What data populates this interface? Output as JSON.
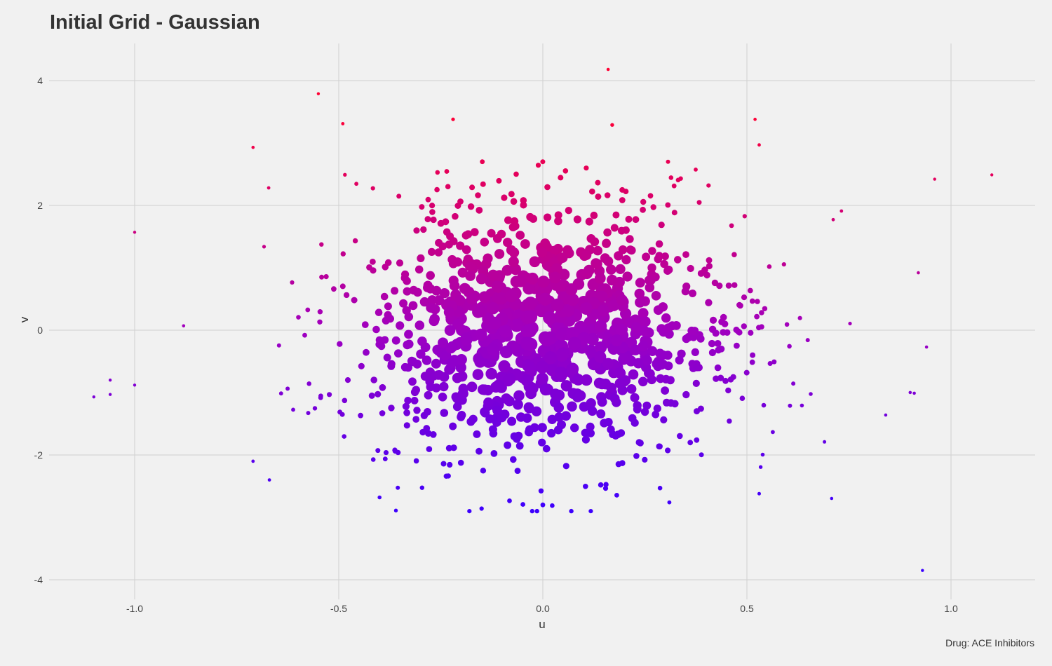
{
  "chart_data": {
    "type": "scatter",
    "title": "Initial Grid - Gaussian",
    "xlabel": "u",
    "ylabel": "v",
    "caption": "Drug: ACE Inhibitors",
    "xlim": [
      -1.2,
      1.2
    ],
    "ylim": [
      -4.3,
      4.5
    ],
    "xticks": [
      -1.0,
      -0.5,
      0.0,
      0.5,
      1.0
    ],
    "xtick_labels": [
      "-1.0",
      "-0.5",
      "0.0",
      "0.5",
      "1.0"
    ],
    "yticks": [
      -4,
      -2,
      0,
      2,
      4
    ],
    "ytick_labels": [
      "-4",
      "-2",
      "0",
      "2",
      "4"
    ],
    "grid": true,
    "color_low": "#3a00ff",
    "color_mid": "#a000c0",
    "color_high": "#ff0033",
    "background": "#f1f1f1",
    "grid_color": "#d0d0d0",
    "point_count": 1000,
    "distribution": "gaussian",
    "seed": 42,
    "core_sd_u": 0.27,
    "core_sd_v": 1.15,
    "outliers": [
      [
        -1.1,
        -1.07
      ],
      [
        -1.06,
        -0.8
      ],
      [
        -1.06,
        -1.03
      ],
      [
        -1.0,
        -0.88
      ],
      [
        -1.0,
        1.57
      ],
      [
        -0.88,
        0.07
      ],
      [
        -0.71,
        2.93
      ],
      [
        -0.71,
        -2.1
      ],
      [
        -0.67,
        -2.4
      ],
      [
        -0.55,
        3.79
      ],
      [
        -0.49,
        3.31
      ],
      [
        -0.22,
        3.38
      ],
      [
        0.16,
        4.18
      ],
      [
        0.17,
        3.29
      ],
      [
        0.52,
        3.38
      ],
      [
        0.53,
        2.97
      ],
      [
        0.96,
        2.42
      ],
      [
        1.1,
        2.49
      ],
      [
        0.93,
        -3.85
      ],
      [
        0.94,
        -0.27
      ],
      [
        0.92,
        0.92
      ],
      [
        0.84,
        -1.36
      ],
      [
        0.91,
        -1.01
      ],
      [
        -0.36,
        -2.89
      ],
      [
        -0.15,
        -2.86
      ],
      [
        0.0,
        -2.8
      ],
      [
        0.31,
        -2.76
      ],
      [
        0.53,
        -2.62
      ],
      [
        -0.4,
        -2.68
      ],
      [
        0.69,
        -1.79
      ]
    ]
  }
}
